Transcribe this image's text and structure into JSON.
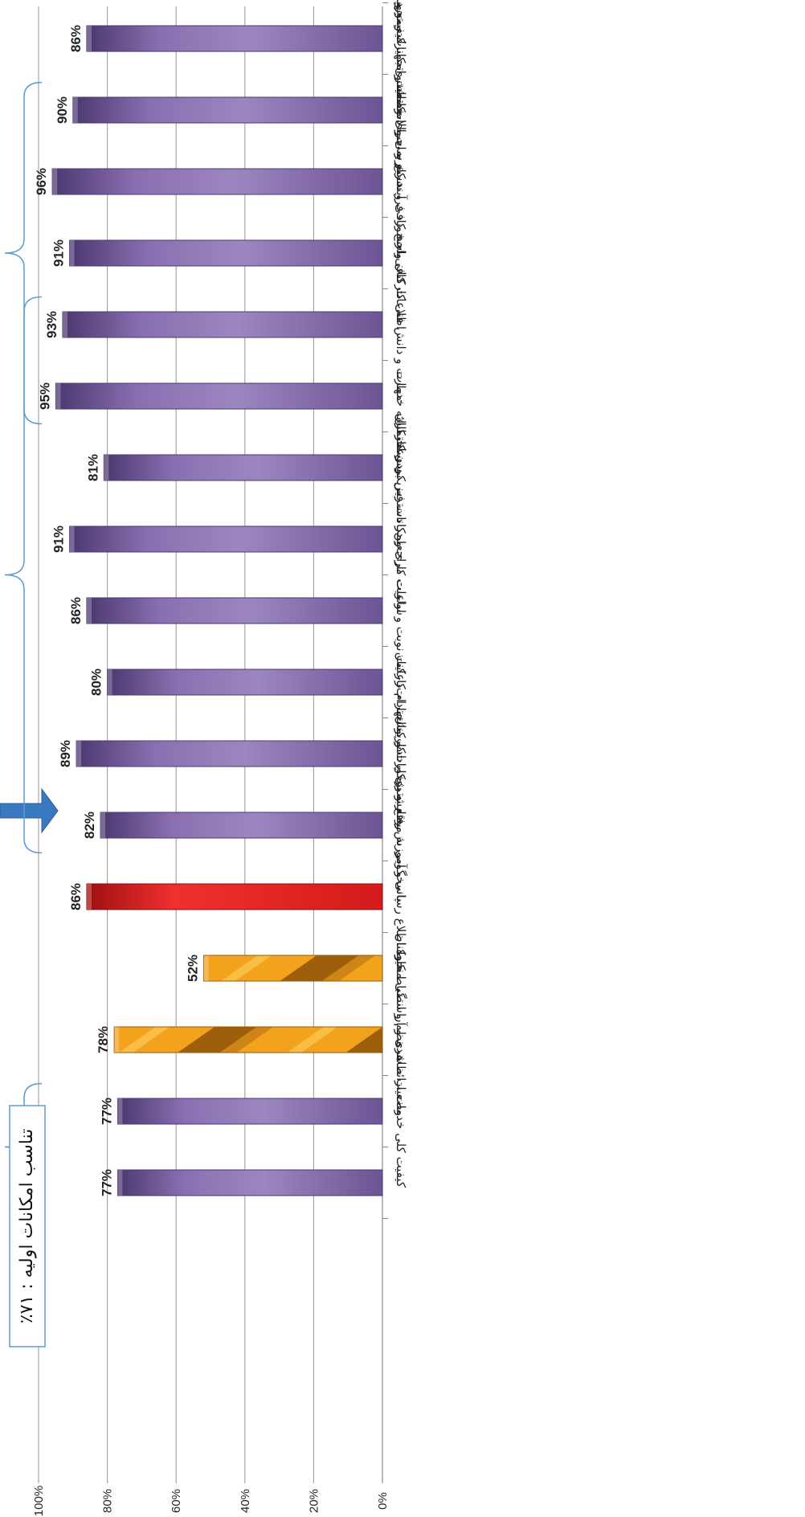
{
  "chart_data": {
    "type": "bar",
    "orientation": "horizontal",
    "categories": [
      "کیفیت و تنوع در انجام خدمات مورد نیاز",
      "وضعیت امکانات و تجهیزات متناسب با نیاز مشتری",
      "دسترسی به امکانات و تجهیزات مورد نیاز",
      "پاسخ کافی و سریع به سوالات مشتری",
      "اطلاعات کافی در مورد فرآیند کار و اجرای خدمات",
      "مهارت و دانش فنی کارکنان واحد",
      "سرعت ارائه خدمات",
      "امکانات فیزیکی ساختمان",
      "ساعات کاری و در دسترس بودن کارکنان",
      "رعایت نوبت و اولویت مراجعین",
      "ادب و احترام کارکنان",
      "رفتار و برخورد کارکنان",
      "پاسخگویی به موقع به شکایات و پیشنهادات",
      "نحوه اطلاع رسانی و آموزش به مشتری",
      "نظم و انضباط کارکنان",
      "وضعیت ظاهری و آراستگی محیط",
      "کیفیت کلی خدمات ارائه شده"
    ],
    "values": [
      86,
      90,
      96,
      91,
      93,
      95,
      81,
      91,
      86,
      80,
      89,
      82,
      86,
      52,
      78,
      77,
      77
    ],
    "value_labels": [
      "86%",
      "90%",
      "96%",
      "91%",
      "93%",
      "95%",
      "81%",
      "91%",
      "86%",
      "80%",
      "89%",
      "82%",
      "86%",
      "52%",
      "78%",
      "77%",
      "77%"
    ],
    "bar_styles": [
      "purple",
      "purple",
      "purple",
      "purple",
      "purple",
      "purple",
      "purple",
      "purple",
      "purple",
      "purple",
      "purple",
      "purple",
      "red",
      "orange",
      "orange",
      "purple",
      "purple"
    ],
    "value_axis": {
      "min": 0,
      "max": 100,
      "ticks": [
        "0%",
        "20%",
        "40%",
        "60%",
        "80%",
        "100%"
      ],
      "gridlines": true
    },
    "colors": {
      "purple": "#8064A2",
      "purple_dark": "#4B3870",
      "red": "#E02020",
      "orange": "#F2A21C",
      "orange_dark": "#9A5A0A",
      "grid": "#A6A6A6",
      "bracket": "#5B9BD5",
      "arrow": "#3A78C0"
    },
    "annotation": {
      "text": "تناسب امکانات اولیه : ۷۱٪",
      "arrow_target": "پاسخگویی به موقع به شکایات و پیشنهادات"
    },
    "brackets": [
      {
        "from": "وضعیت ظاهری و آراستگی محیط",
        "to": "کیفیت کلی خدمات ارائه شده"
      },
      {
        "from": "اطلاعات کافی در مورد فرآیند کار و اجرای خدمات",
        "to": "رفتار و برخورد کارکنان"
      },
      {
        "from": "وضعیت امکانات و تجهیزات متناسب با نیاز مشتری",
        "to": "مهارت و دانش فنی کارکنان واحد"
      }
    ]
  }
}
